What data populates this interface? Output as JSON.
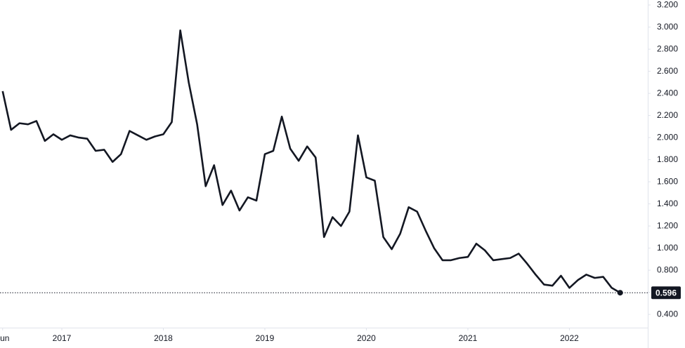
{
  "chart_data": {
    "type": "line",
    "color": "#131722",
    "x": [
      2016.417,
      2016.5,
      2016.583,
      2016.667,
      2016.75,
      2016.833,
      2016.917,
      2017,
      2017.083,
      2017.167,
      2017.25,
      2017.333,
      2017.417,
      2017.5,
      2017.583,
      2017.667,
      2017.75,
      2017.833,
      2017.917,
      2018,
      2018.083,
      2018.167,
      2018.25,
      2018.333,
      2018.417,
      2018.5,
      2018.583,
      2018.667,
      2018.75,
      2018.833,
      2018.917,
      2019,
      2019.083,
      2019.167,
      2019.25,
      2019.333,
      2019.417,
      2019.5,
      2019.583,
      2019.667,
      2019.75,
      2019.833,
      2019.917,
      2020,
      2020.083,
      2020.167,
      2020.25,
      2020.333,
      2020.417,
      2020.5,
      2020.583,
      2020.667,
      2020.75,
      2020.833,
      2020.917,
      2021,
      2021.083,
      2021.167,
      2021.25,
      2021.333,
      2021.417,
      2021.5,
      2021.583,
      2021.667,
      2021.75,
      2021.833,
      2021.917,
      2022,
      2022.083,
      2022.167,
      2022.25,
      2022.333,
      2022.417,
      2022.5
    ],
    "values": [
      2.42,
      2.07,
      2.13,
      2.12,
      2.15,
      1.97,
      2.03,
      1.98,
      2.02,
      2.0,
      1.99,
      1.88,
      1.89,
      1.78,
      1.85,
      2.06,
      2.02,
      1.98,
      2.01,
      2.03,
      2.14,
      2.97,
      2.5,
      2.12,
      1.56,
      1.75,
      1.39,
      1.52,
      1.34,
      1.46,
      1.43,
      1.85,
      1.88,
      2.19,
      1.9,
      1.79,
      1.92,
      1.82,
      1.1,
      1.28,
      1.2,
      1.33,
      2.02,
      1.64,
      1.61,
      1.1,
      0.99,
      1.13,
      1.37,
      1.33,
      1.16,
      1.0,
      0.89,
      0.89,
      0.91,
      0.92,
      1.04,
      0.98,
      0.89,
      0.9,
      0.91,
      0.95,
      0.86,
      0.76,
      0.67,
      0.66,
      0.75,
      0.64,
      0.71,
      0.76,
      0.73,
      0.74,
      0.64,
      0.596
    ],
    "xlim": [
      2016.391,
      2022.772
    ],
    "xticks": [
      {
        "value": 2016.417,
        "label": "Jun"
      },
      2017,
      2018,
      2019,
      2020,
      2021,
      2022
    ],
    "ylim": [
      0.28,
      3.245
    ],
    "yticks": [
      {
        "value": 0.4,
        "label": "0.400"
      },
      {
        "value": 0.6,
        "label": "0.600"
      },
      {
        "value": 0.8,
        "label": "0.800"
      },
      {
        "value": 1.0,
        "label": "1.000"
      },
      {
        "value": 1.2,
        "label": "1.200"
      },
      {
        "value": 1.4,
        "label": "1.400"
      },
      {
        "value": 1.6,
        "label": "1.600"
      },
      {
        "value": 1.8,
        "label": "1.800"
      },
      {
        "value": 2.0,
        "label": "2.000"
      },
      {
        "value": 2.2,
        "label": "2.200"
      },
      {
        "value": 2.4,
        "label": "2.400"
      },
      {
        "value": 2.6,
        "label": "2.600"
      },
      {
        "value": 2.8,
        "label": "2.800"
      },
      {
        "value": 3.0,
        "label": "3.000"
      },
      {
        "value": 3.2,
        "label": "3.200"
      }
    ]
  }
}
